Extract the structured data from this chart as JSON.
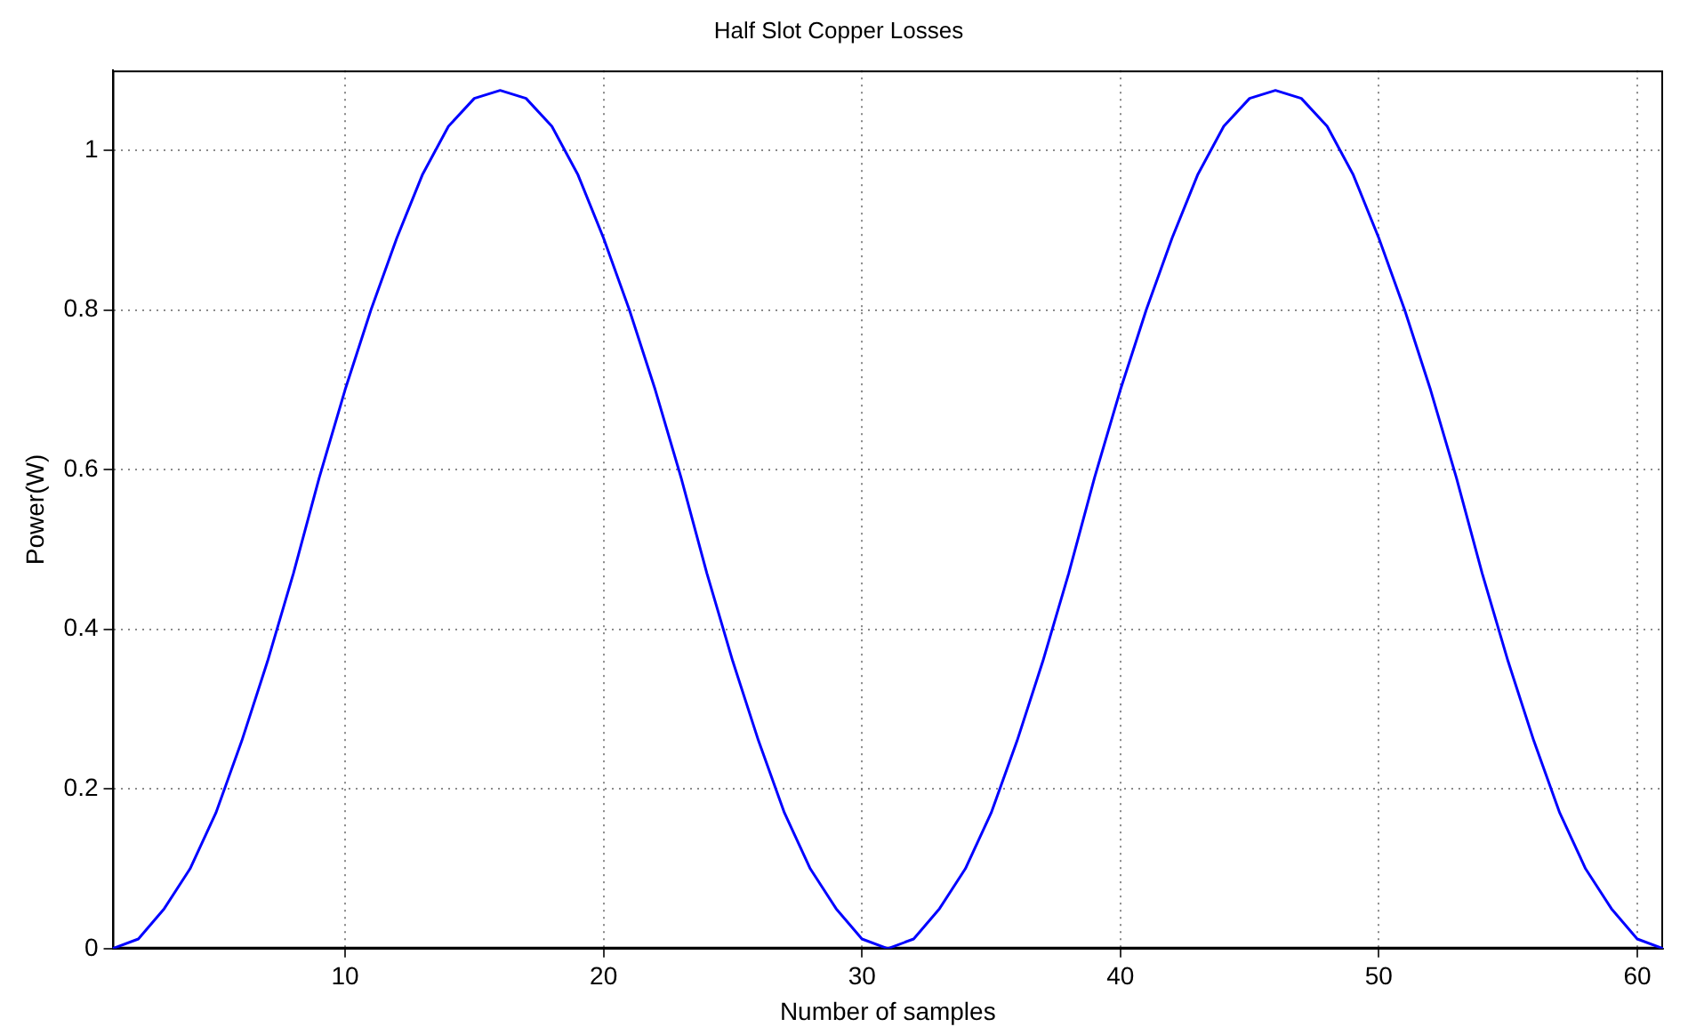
{
  "chart_data": {
    "type": "line",
    "title": "Half Slot Copper Losses",
    "xlabel": "Number of samples",
    "ylabel": "Power(W)",
    "x": [
      1,
      2,
      3,
      4,
      5,
      6,
      7,
      8,
      9,
      10,
      11,
      12,
      13,
      14,
      15,
      16,
      17,
      18,
      19,
      20,
      21,
      22,
      23,
      24,
      25,
      26,
      27,
      28,
      29,
      30,
      31,
      32,
      33,
      34,
      35,
      36,
      37,
      38,
      39,
      40,
      41,
      42,
      43,
      44,
      45,
      46,
      47,
      48,
      49,
      50,
      51,
      52,
      53,
      54,
      55,
      56,
      57,
      58,
      59,
      60,
      61
    ],
    "series": [
      {
        "color": "#0000ff",
        "values": [
          0,
          0.012,
          0.05,
          0.1,
          0.17,
          0.26,
          0.36,
          0.47,
          0.59,
          0.7,
          0.8,
          0.89,
          0.97,
          1.03,
          1.065,
          1.075,
          1.065,
          1.03,
          0.97,
          0.89,
          0.8,
          0.7,
          0.59,
          0.47,
          0.36,
          0.26,
          0.17,
          0.1,
          0.05,
          0.012,
          0,
          0.012,
          0.05,
          0.1,
          0.17,
          0.26,
          0.36,
          0.47,
          0.59,
          0.7,
          0.8,
          0.89,
          0.97,
          1.03,
          1.065,
          1.075,
          1.065,
          1.03,
          0.97,
          0.89,
          0.8,
          0.7,
          0.59,
          0.47,
          0.36,
          0.26,
          0.17,
          0.1,
          0.05,
          0.012,
          0
        ]
      }
    ],
    "xlim": [
      1,
      61
    ],
    "xticks": [
      10,
      20,
      30,
      40,
      50,
      60
    ],
    "ylim": [
      0,
      1.1
    ],
    "yticks": [
      0,
      0.2,
      0.4,
      0.6,
      0.8,
      1
    ],
    "grid": true,
    "line_style": "solid",
    "marker": "none",
    "legend": false
  }
}
